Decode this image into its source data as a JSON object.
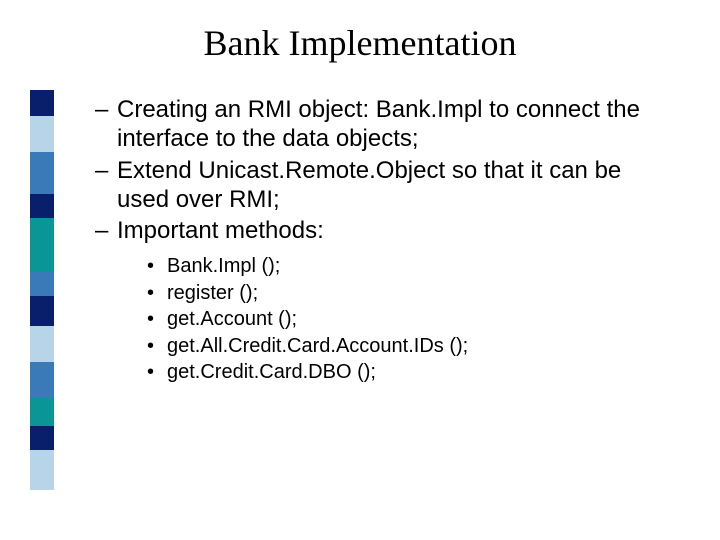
{
  "title": "Bank Implementation",
  "sidebar": {
    "blocks": [
      {
        "color": "#0a1f6b",
        "height": 26
      },
      {
        "color": "#b8d4e8",
        "height": 36
      },
      {
        "color": "#3a7ab8",
        "height": 42
      },
      {
        "color": "#0a1f6b",
        "height": 24
      },
      {
        "color": "#0a9696",
        "height": 54
      },
      {
        "color": "#3a7ab8",
        "height": 24
      },
      {
        "color": "#0a1f6b",
        "height": 30
      },
      {
        "color": "#b8d4e8",
        "height": 36
      },
      {
        "color": "#3a7ab8",
        "height": 36
      },
      {
        "color": "#0a9696",
        "height": 28
      },
      {
        "color": "#0a1f6b",
        "height": 24
      },
      {
        "color": "#b8d4e8",
        "height": 40
      }
    ]
  },
  "bullets_level1": [
    "Creating an RMI object: Bank.Impl to connect the interface to the data objects;",
    "Extend Unicast.Remote.Object so that it can be used over RMI;",
    "Important methods:"
  ],
  "bullets_level2": [
    "Bank.Impl ();",
    "register ();",
    "get.Account ();",
    "get.All.Credit.Card.Account.IDs ();",
    "get.Credit.Card.DBO ();"
  ],
  "dash": "–",
  "bullet": "•"
}
